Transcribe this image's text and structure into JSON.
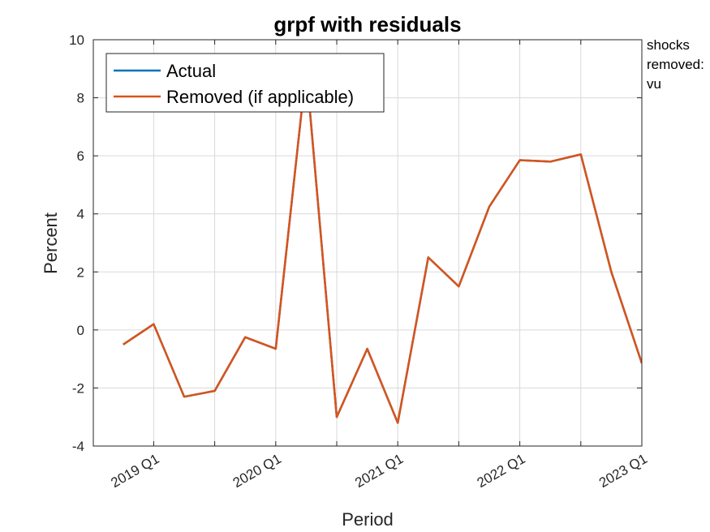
{
  "chart_data": {
    "type": "line",
    "title": "grpf with residuals",
    "xlabel": "Period",
    "ylabel": "Percent",
    "ylim": [
      -4,
      10
    ],
    "yticks": [
      -4,
      -2,
      0,
      2,
      4,
      6,
      8,
      10
    ],
    "yticklabels": [
      "-4",
      "-2",
      "0",
      "2",
      "4",
      "6",
      "8",
      "10"
    ],
    "x": [
      "2018 Q4",
      "2019 Q1",
      "2019 Q2",
      "2019 Q3",
      "2019 Q4",
      "2020 Q1",
      "2020 Q2",
      "2020 Q3",
      "2020 Q4",
      "2021 Q1",
      "2021 Q2",
      "2021 Q3",
      "2021 Q4",
      "2022 Q1",
      "2022 Q2",
      "2022 Q3",
      "2022 Q4",
      "2023 Q1"
    ],
    "xticklabels": [
      "2019 Q1",
      "2020 Q1",
      "2021 Q1",
      "2022 Q1",
      "2023 Q1"
    ],
    "grid": true,
    "legend_position": "top-left",
    "series": [
      {
        "name": "Actual",
        "color": "#0072BD",
        "values": [
          -0.5,
          0.2,
          -2.3,
          -2.1,
          -0.25,
          -0.65,
          9.0,
          -3.0,
          -0.65,
          -3.2,
          2.5,
          1.5,
          4.25,
          5.85,
          5.8,
          6.05,
          2.0,
          -1.15
        ]
      },
      {
        "name": "Removed (if applicable)",
        "color": "#D95319",
        "values": [
          -0.5,
          0.2,
          -2.3,
          -2.1,
          -0.25,
          -0.65,
          9.0,
          -3.0,
          -0.65,
          -3.2,
          2.5,
          1.5,
          4.25,
          5.85,
          5.8,
          6.05,
          2.0,
          -1.15
        ]
      }
    ],
    "annotation_lines": [
      "shocks",
      "removed:",
      "vu"
    ]
  }
}
